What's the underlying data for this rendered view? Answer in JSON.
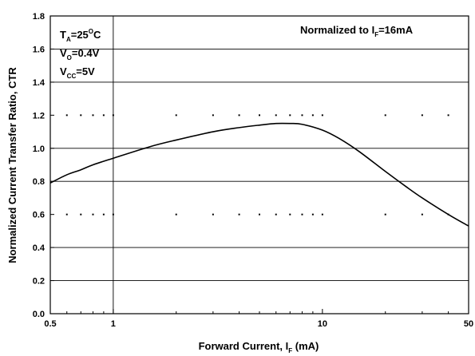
{
  "chart_data": {
    "type": "line",
    "xlabel": "Forward Current, I_F (mA)",
    "xlabel_main": "Forward Current, I",
    "xlabel_sub": "F",
    "xlabel_tail": " (mA)",
    "ylabel": "Normalized Current Transfer Ratio, CTR",
    "x_scale": "log",
    "xlim": [
      0.5,
      50
    ],
    "ylim": [
      0.0,
      1.8
    ],
    "x_ticks": [
      0.5,
      1,
      10,
      50
    ],
    "x_tick_labels": [
      "0.5",
      "1",
      "10",
      "50"
    ],
    "y_ticks": [
      0.0,
      0.2,
      0.4,
      0.6,
      0.8,
      1.0,
      1.2,
      1.4,
      1.6,
      1.8
    ],
    "y_tick_labels": [
      "0.0",
      "0.2",
      "0.4",
      "0.6",
      "0.8",
      "1.0",
      "1.2",
      "1.4",
      "1.6",
      "1.8"
    ],
    "grid": true,
    "annotations": {
      "normalized": {
        "text": "Normalized to I",
        "sub": "F",
        "tail": "=16mA"
      },
      "conditions": [
        {
          "main": "T",
          "sub": "A",
          "sup": "O",
          "tail": "=25",
          "tail2": "C"
        },
        {
          "main": "V",
          "sub": "O",
          "tail": "=0.4V"
        },
        {
          "main": "V",
          "sub": "CC",
          "tail": "=5V"
        }
      ]
    },
    "series": [
      {
        "x": [
          0.5,
          0.6,
          0.7,
          0.8,
          1.0,
          1.5,
          2,
          3,
          4,
          5,
          6,
          7,
          8,
          10,
          12,
          15,
          20,
          25,
          30,
          40,
          50
        ],
        "y": [
          0.79,
          0.84,
          0.87,
          0.9,
          0.94,
          1.01,
          1.05,
          1.1,
          1.125,
          1.14,
          1.15,
          1.15,
          1.145,
          1.11,
          1.06,
          0.98,
          0.86,
          0.77,
          0.7,
          0.6,
          0.53
        ]
      }
    ]
  }
}
